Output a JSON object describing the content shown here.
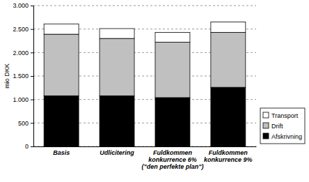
{
  "chart_data": {
    "type": "bar",
    "stacked": true,
    "grid": true,
    "legend": "right",
    "y_label": "mio DKK",
    "categories": [
      "Basis",
      "Udlicitering",
      "Fuldkommen\nkonkurrence 6%\n(\"den perfekte plan\")",
      "Fuldkommen\nkonkurrence 9%"
    ],
    "series": [
      {
        "name": "Afskrivning",
        "color": "#000000",
        "values": [
          1080,
          1080,
          1040,
          1260
        ]
      },
      {
        "name": "Drift",
        "color": "#c0c0c0",
        "values": [
          1310,
          1220,
          1180,
          1170
        ]
      },
      {
        "name": "Transport",
        "color": "#ffffff",
        "values": [
          220,
          210,
          210,
          220
        ]
      }
    ],
    "ylim": [
      0,
      3000
    ],
    "yticks": [
      0,
      500,
      {
        "value": 1000,
        "label": "1.000"
      },
      {
        "value": 1500,
        "label": "1.500"
      },
      {
        "value": 2000,
        "label": "2.000"
      },
      {
        "value": 2500,
        "label": "2.500"
      },
      {
        "value": 3000,
        "label": "3.000"
      }
    ]
  }
}
